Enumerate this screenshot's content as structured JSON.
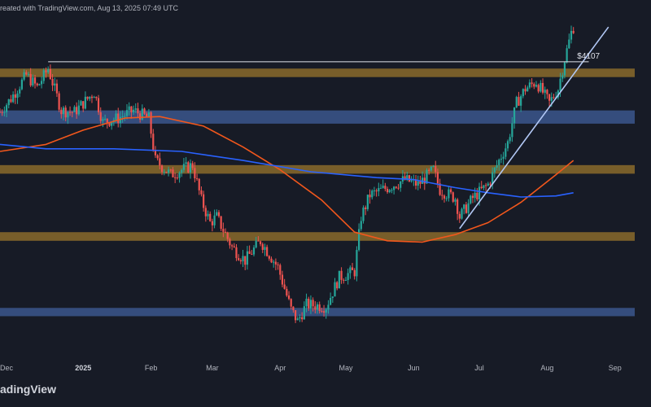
{
  "header": {
    "created_text": "reated with TradingView.com, Aug 13, 2025 07:49 UTC"
  },
  "brand": {
    "logo_text": "adingView"
  },
  "colors": {
    "background": "#171b26",
    "up": "#26a69a",
    "down": "#ef5350",
    "sma_orange": "#f2571c",
    "sma_blue": "#2962ff",
    "trendline": "#b2c8f5",
    "resistance_zone": "#8a6a2c",
    "support_zone": "#3d5a94"
  },
  "chart_data": {
    "type": "candlestick",
    "x_ticks": [
      {
        "label": "Dec",
        "date": "2024-12-01",
        "bold": false
      },
      {
        "label": "2025",
        "date": "2025-01-01",
        "bold": true
      },
      {
        "label": "Feb",
        "date": "2025-02-01",
        "bold": false
      },
      {
        "label": "Mar",
        "date": "2025-03-01",
        "bold": false
      },
      {
        "label": "Apr",
        "date": "2025-04-01",
        "bold": false
      },
      {
        "label": "May",
        "date": "2025-05-01",
        "bold": false
      },
      {
        "label": "Jun",
        "date": "2025-06-01",
        "bold": false
      },
      {
        "label": "Jul",
        "date": "2025-07-01",
        "bold": false
      },
      {
        "label": "Aug",
        "date": "2025-08-01",
        "bold": false
      },
      {
        "label": "Sep",
        "date": "2025-09-01",
        "bold": false
      }
    ],
    "x_range": [
      "2024-11-24",
      "2025-09-10"
    ],
    "y_range": [
      1300,
      4900
    ],
    "y_scale": "log",
    "close_path": [
      [
        "2024-11-24",
        3380
      ],
      [
        "2024-11-29",
        3560
      ],
      [
        "2024-12-06",
        3900
      ],
      [
        "2024-12-11",
        3720
      ],
      [
        "2024-12-16",
        4000
      ],
      [
        "2024-12-22",
        3400
      ],
      [
        "2024-12-28",
        3380
      ],
      [
        "2025-01-06",
        3650
      ],
      [
        "2025-01-10",
        3250
      ],
      [
        "2025-01-17",
        3300
      ],
      [
        "2025-01-24",
        3400
      ],
      [
        "2025-01-31",
        3300
      ],
      [
        "2025-02-03",
        2800
      ],
      [
        "2025-02-10",
        2650
      ],
      [
        "2025-02-15",
        2700
      ],
      [
        "2025-02-20",
        2750
      ],
      [
        "2025-02-24",
        2400
      ],
      [
        "2025-02-28",
        2200
      ],
      [
        "2025-03-03",
        2250
      ],
      [
        "2025-03-10",
        2000
      ],
      [
        "2025-03-16",
        1900
      ],
      [
        "2025-03-23",
        2050
      ],
      [
        "2025-03-31",
        1850
      ],
      [
        "2025-04-06",
        1570
      ],
      [
        "2025-04-09",
        1500
      ],
      [
        "2025-04-13",
        1600
      ],
      [
        "2025-04-22",
        1590
      ],
      [
        "2025-04-28",
        1780
      ],
      [
        "2025-05-05",
        1820
      ],
      [
        "2025-05-08",
        2250
      ],
      [
        "2025-05-12",
        2450
      ],
      [
        "2025-05-20",
        2520
      ],
      [
        "2025-05-28",
        2600
      ],
      [
        "2025-06-03",
        2550
      ],
      [
        "2025-06-10",
        2700
      ],
      [
        "2025-06-13",
        2500
      ],
      [
        "2025-06-20",
        2420
      ],
      [
        "2025-06-22",
        2250
      ],
      [
        "2025-06-28",
        2420
      ],
      [
        "2025-07-05",
        2550
      ],
      [
        "2025-07-10",
        2800
      ],
      [
        "2025-07-14",
        3000
      ],
      [
        "2025-07-18",
        3500
      ],
      [
        "2025-07-22",
        3700
      ],
      [
        "2025-07-27",
        3800
      ],
      [
        "2025-08-02",
        3500
      ],
      [
        "2025-08-06",
        3700
      ],
      [
        "2025-08-09",
        4150
      ],
      [
        "2025-08-12",
        4600
      ],
      [
        "2025-08-13",
        4700
      ]
    ],
    "series": [
      {
        "name": "",
        "kind": "sma_orange",
        "points": [
          [
            "2024-11-24",
            2900
          ],
          [
            "2024-12-15",
            2980
          ],
          [
            "2025-01-01",
            3150
          ],
          [
            "2025-01-20",
            3300
          ],
          [
            "2025-02-05",
            3320
          ],
          [
            "2025-02-25",
            3200
          ],
          [
            "2025-03-15",
            2950
          ],
          [
            "2025-04-01",
            2700
          ],
          [
            "2025-04-20",
            2400
          ],
          [
            "2025-05-05",
            2120
          ],
          [
            "2025-05-20",
            2050
          ],
          [
            "2025-06-05",
            2040
          ],
          [
            "2025-06-20",
            2100
          ],
          [
            "2025-07-05",
            2200
          ],
          [
            "2025-07-20",
            2380
          ],
          [
            "2025-08-05",
            2650
          ],
          [
            "2025-08-13",
            2800
          ]
        ]
      },
      {
        "name": "",
        "kind": "sma_blue",
        "points": [
          [
            "2024-11-24",
            2980
          ],
          [
            "2024-12-15",
            2930
          ],
          [
            "2025-01-15",
            2930
          ],
          [
            "2025-02-15",
            2900
          ],
          [
            "2025-03-15",
            2800
          ],
          [
            "2025-04-15",
            2680
          ],
          [
            "2025-05-15",
            2620
          ],
          [
            "2025-06-01",
            2600
          ],
          [
            "2025-06-20",
            2520
          ],
          [
            "2025-07-05",
            2470
          ],
          [
            "2025-07-20",
            2430
          ],
          [
            "2025-08-05",
            2440
          ],
          [
            "2025-08-13",
            2470
          ]
        ]
      }
    ],
    "zones": [
      {
        "kind": "resistance",
        "top": 4000,
        "bottom": 3870
      },
      {
        "kind": "support",
        "top": 3400,
        "bottom": 3230
      },
      {
        "kind": "resistance",
        "top": 2750,
        "bottom": 2660
      },
      {
        "kind": "resistance",
        "top": 2120,
        "bottom": 2050
      },
      {
        "kind": "support",
        "top": 1580,
        "bottom": 1530
      }
    ],
    "trendline": {
      "start": [
        "2025-06-22",
        2150
      ],
      "end": [
        "2025-08-29",
        4700
      ]
    },
    "hline": {
      "start": [
        "2024-12-16",
        4107
      ],
      "end": [
        "2025-08-20",
        4107
      ]
    },
    "price_label": "$4107",
    "price_label_at": [
      "2025-08-11",
      4107
    ]
  }
}
